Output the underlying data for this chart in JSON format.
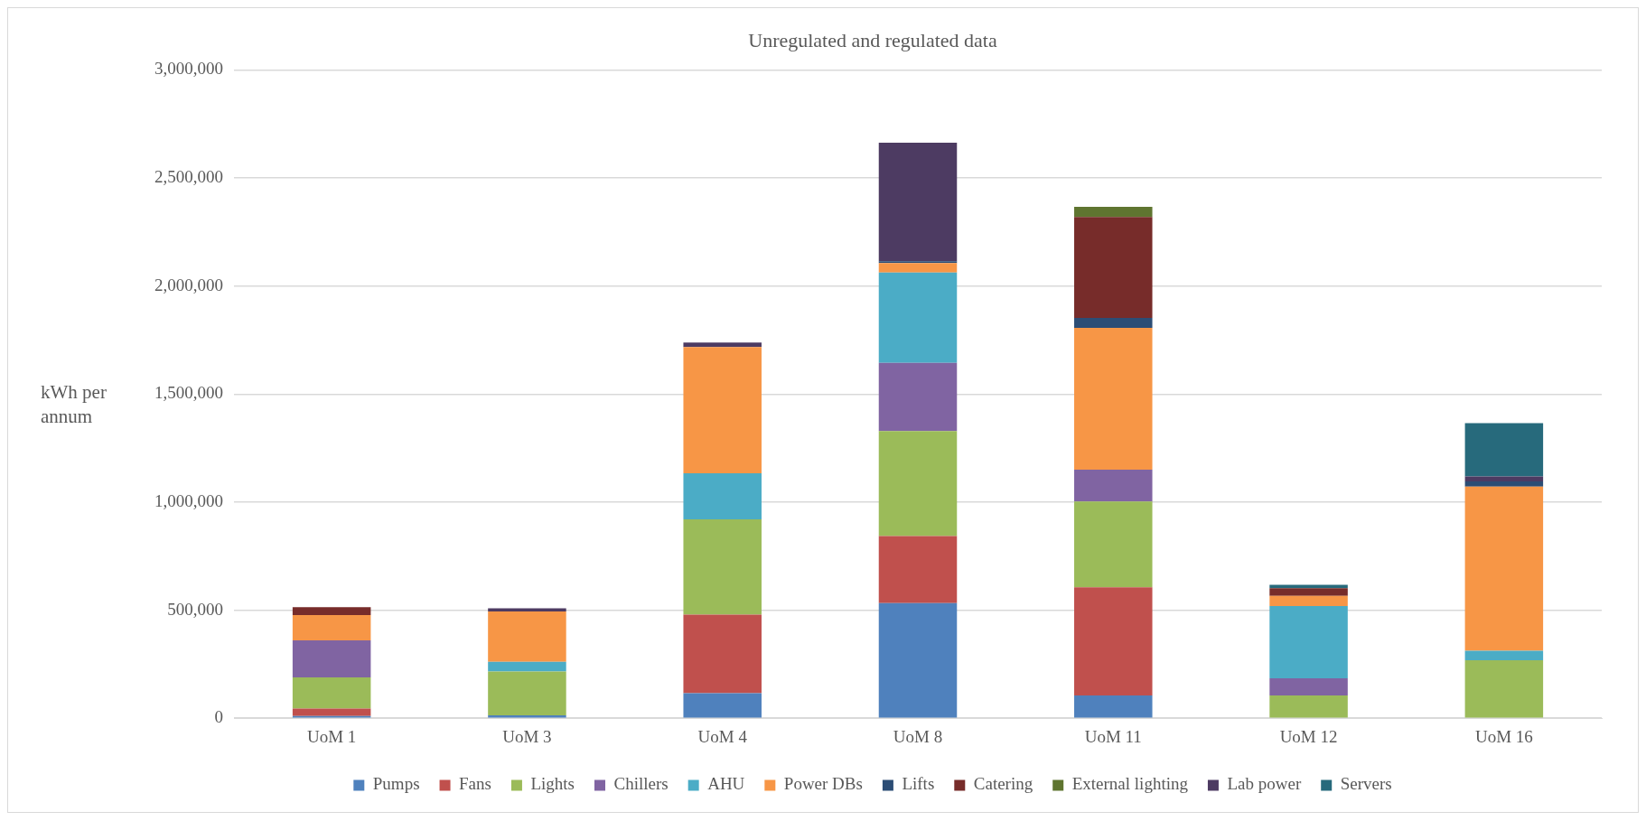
{
  "chart_data": {
    "type": "bar",
    "title": "Unregulated and regulated data",
    "ylabel": "kWh per annum",
    "stacked": true,
    "categories": [
      "UoM 1",
      "UoM 3",
      "UoM 4",
      "UoM 8",
      "UoM 11",
      "UoM 12",
      "UoM 16"
    ],
    "series": [
      {
        "name": "Pumps",
        "color": "#4f81bd",
        "values": [
          10000,
          13000,
          116000,
          533000,
          105000,
          null,
          null
        ]
      },
      {
        "name": "Fans",
        "color": "#c0504d",
        "values": [
          35000,
          null,
          363000,
          310000,
          501000,
          null,
          null
        ]
      },
      {
        "name": "Lights",
        "color": "#9bbb59",
        "values": [
          144000,
          203000,
          441000,
          486000,
          397000,
          105000,
          268000
        ]
      },
      {
        "name": "Chillers",
        "color": "#8064a2",
        "values": [
          171000,
          null,
          null,
          315000,
          147000,
          80000,
          null
        ]
      },
      {
        "name": "AHU",
        "color": "#4bacc6",
        "values": [
          null,
          45000,
          213000,
          418000,
          null,
          334000,
          44000
        ]
      },
      {
        "name": "Power DBs",
        "color": "#f79646",
        "values": [
          117000,
          233000,
          585000,
          44000,
          656000,
          47000,
          760000
        ]
      },
      {
        "name": "Lifts",
        "color": "#2c4d75",
        "values": [
          null,
          null,
          null,
          9000,
          46000,
          null,
          24000
        ]
      },
      {
        "name": "Catering",
        "color": "#772c2a",
        "values": [
          37000,
          null,
          null,
          null,
          467000,
          36000,
          null
        ]
      },
      {
        "name": "External lighting",
        "color": "#5f7530",
        "values": [
          null,
          null,
          null,
          null,
          47000,
          null,
          null
        ]
      },
      {
        "name": "Lab power",
        "color": "#4d3b62",
        "values": [
          null,
          15000,
          20000,
          548000,
          null,
          null,
          23000
        ]
      },
      {
        "name": "Servers",
        "color": "#276a7c",
        "values": [
          null,
          null,
          null,
          null,
          null,
          15000,
          246000
        ]
      }
    ],
    "ylim": [
      0,
      3000000
    ],
    "yticks": [
      0,
      {
        "value": 500000,
        "label": "500,000"
      },
      {
        "value": 1000000,
        "label": "1,000,000"
      },
      {
        "value": 1500000,
        "label": "1,500,000"
      },
      {
        "value": 2000000,
        "label": "2,000,000"
      },
      {
        "value": 2500000,
        "label": "2,500,000"
      },
      {
        "value": 3000000,
        "label": "3,000,000"
      }
    ],
    "grid": "y",
    "legend": "bottom"
  }
}
